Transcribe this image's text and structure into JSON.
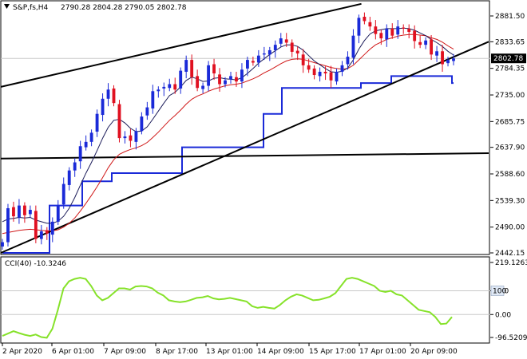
{
  "header": {
    "symbol": "S&P,fs,H4",
    "ohlc": "2790.28 2804.28 2790.05 2802.78"
  },
  "price_axis": {
    "ticks": [
      "2881.50",
      "2833.65",
      "2784.35",
      "2735.00",
      "2685.75",
      "2637.90",
      "2588.60",
      "2539.30",
      "2490.00",
      "2442.15"
    ],
    "current_price": "2802.78"
  },
  "indicator": {
    "title": "CCI(40) -10.3246",
    "ticks": [
      "219.1263",
      "100",
      "0.00",
      "-96.5209"
    ],
    "level_label": "100"
  },
  "time_axis": {
    "labels": [
      "2 Apr 2020",
      "6 Apr 01:00",
      "7 Apr 09:00",
      "8 Apr 17:00",
      "13 Apr 01:00",
      "14 Apr 09:00",
      "15 Apr 17:00",
      "17 Apr 01:00",
      "20 Apr 09:00"
    ]
  },
  "colors": {
    "bull": "#1a2ad8",
    "bear": "#e01020",
    "ma_fast": "#1c1c5a",
    "ma_slow": "#d01818",
    "stop_line": "#1a2ad8",
    "cci": "#86e22a",
    "trend": "#000000",
    "grid": "#c8c8c8"
  },
  "chart_data": [
    {
      "type": "candlestick",
      "title": "S&P,fs,H4",
      "x": [
        "2 Apr 2020",
        "6 Apr 01:00",
        "7 Apr 09:00",
        "8 Apr 17:00",
        "13 Apr 01:00",
        "14 Apr 09:00",
        "15 Apr 17:00",
        "17 Apr 01:00",
        "20 Apr 09:00"
      ],
      "ylim": [
        2442.15,
        2904
      ],
      "close_series": [
        2462,
        2525,
        2510,
        2530,
        2512,
        2522,
        2468,
        2482,
        2478,
        2500,
        2530,
        2570,
        2595,
        2610,
        2640,
        2648,
        2665,
        2700,
        2728,
        2745,
        2720,
        2655,
        2658,
        2650,
        2668,
        2695,
        2712,
        2742,
        2745,
        2750,
        2755,
        2745,
        2780,
        2800,
        2768,
        2748,
        2752,
        2790,
        2775,
        2755,
        2762,
        2770,
        2760,
        2782,
        2800,
        2795,
        2808,
        2812,
        2818,
        2828,
        2840,
        2832,
        2815,
        2812,
        2790,
        2782,
        2772,
        2778,
        2775,
        2762,
        2778,
        2790,
        2806,
        2845,
        2878,
        2872,
        2862,
        2848,
        2840,
        2858,
        2845,
        2862,
        2858,
        2852,
        2835,
        2828,
        2836,
        2810,
        2816,
        2792,
        2800,
        2802.78
      ],
      "ma_fast_series": [
        2500,
        2505,
        2506,
        2508,
        2507,
        2508,
        2503,
        2500,
        2497,
        2497,
        2501,
        2510,
        2525,
        2545,
        2568,
        2590,
        2610,
        2632,
        2655,
        2675,
        2688,
        2690,
        2683,
        2673,
        2667,
        2668,
        2676,
        2690,
        2705,
        2720,
        2734,
        2740,
        2750,
        2762,
        2768,
        2765,
        2760,
        2761,
        2766,
        2767,
        2765,
        2764,
        2763,
        2767,
        2775,
        2784,
        2794,
        2802,
        2810,
        2817,
        2824,
        2828,
        2828,
        2825,
        2818,
        2808,
        2798,
        2791,
        2784,
        2778,
        2777,
        2779,
        2785,
        2800,
        2820,
        2836,
        2848,
        2854,
        2856,
        2858,
        2858,
        2858,
        2859,
        2858,
        2855,
        2850,
        2845,
        2838,
        2832,
        2825,
        2816,
        2809
      ],
      "ma_slow_series": [
        2478,
        2480,
        2482,
        2484,
        2485,
        2486,
        2485,
        2484,
        2483,
        2483,
        2485,
        2490,
        2497,
        2507,
        2520,
        2534,
        2549,
        2565,
        2582,
        2600,
        2615,
        2625,
        2630,
        2634,
        2637,
        2641,
        2647,
        2656,
        2666,
        2677,
        2688,
        2697,
        2707,
        2718,
        2727,
        2733,
        2737,
        2742,
        2746,
        2749,
        2752,
        2754,
        2755,
        2757,
        2761,
        2765,
        2770,
        2776,
        2781,
        2787,
        2793,
        2798,
        2801,
        2802,
        2801,
        2798,
        2795,
        2792,
        2789,
        2786,
        2784,
        2783,
        2784,
        2790,
        2800,
        2810,
        2820,
        2828,
        2833,
        2838,
        2841,
        2844,
        2846,
        2847,
        2847,
        2846,
        2845,
        2841,
        2838,
        2833,
        2826,
        2820
      ],
      "stop_line_levels": [
        2442.15,
        2530,
        2575,
        2590,
        2637.9,
        2700,
        2748,
        2757,
        2770,
        2757
      ],
      "trend_lines": [
        {
          "from": [
            0,
            2750
          ],
          "to": [
            58,
            2904
          ]
        },
        {
          "from": [
            0,
            2442.15
          ],
          "to": [
            81,
            2833.65
          ]
        },
        {
          "from": [
            0,
            2617
          ],
          "to": [
            81,
            2627
          ]
        }
      ]
    },
    {
      "type": "line",
      "title": "CCI(40) -10.3246",
      "ylim": [
        -96.5209,
        219.1263
      ],
      "levels": [
        100,
        0.0
      ],
      "values": [
        -90,
        -80,
        -70,
        -78,
        -85,
        -90,
        -84,
        -95,
        -98,
        -60,
        20,
        110,
        140,
        150,
        155,
        150,
        120,
        80,
        60,
        70,
        90,
        110,
        110,
        105,
        118,
        120,
        118,
        110,
        92,
        80,
        60,
        55,
        52,
        55,
        62,
        70,
        72,
        78,
        68,
        64,
        66,
        70,
        65,
        60,
        55,
        35,
        28,
        32,
        28,
        25,
        40,
        60,
        75,
        85,
        80,
        70,
        60,
        62,
        68,
        75,
        90,
        120,
        150,
        155,
        150,
        140,
        130,
        120,
        100,
        95,
        100,
        85,
        80,
        60,
        40,
        20,
        15,
        10,
        -10,
        -40,
        -38,
        -10.3246
      ]
    }
  ]
}
